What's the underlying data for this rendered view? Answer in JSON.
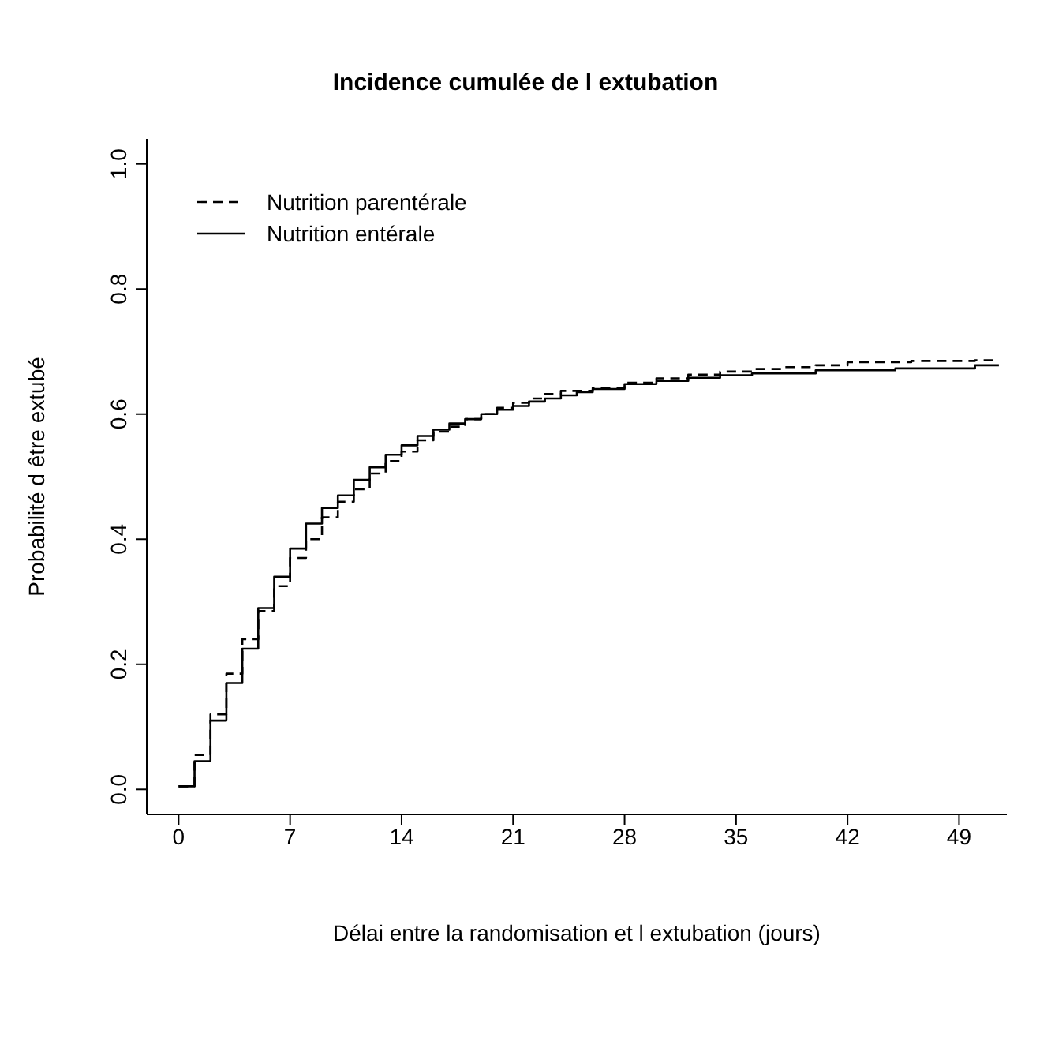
{
  "chart_data": {
    "type": "step",
    "title": "Incidence cumulée de l extubation",
    "xlabel": "Délai entre la randomisation et l extubation (jours)",
    "ylabel": "Probabilité d être extubé",
    "xlim": [
      -2,
      52
    ],
    "xticks": [
      0,
      7,
      14,
      21,
      28,
      35,
      42,
      49
    ],
    "ylim": [
      -0.04,
      1.04
    ],
    "yticks": [
      {
        "value": 0,
        "label": "0.0"
      },
      {
        "value": 0.2,
        "label": "0.2"
      },
      {
        "value": 0.4,
        "label": "0.4"
      },
      {
        "value": 0.6,
        "label": "0.6"
      },
      {
        "value": 0.8,
        "label": "0.8"
      },
      {
        "value": 1,
        "label": "1.0"
      }
    ],
    "legend": "top left",
    "marker": "none",
    "series": [
      {
        "name": "Nutrition parentérale",
        "color": "#000000",
        "line_style": "dashed",
        "x": [
          0,
          1,
          2,
          3,
          4,
          5,
          6,
          7,
          8,
          9,
          10,
          11,
          12,
          13,
          14,
          15,
          16,
          17,
          18,
          19,
          20,
          21,
          22,
          23,
          24,
          26,
          28,
          30,
          32,
          34,
          36,
          38,
          40,
          42,
          46,
          50,
          51.5
        ],
        "values": [
          0.005,
          0.055,
          0.12,
          0.185,
          0.24,
          0.285,
          0.325,
          0.37,
          0.4,
          0.435,
          0.46,
          0.48,
          0.505,
          0.525,
          0.54,
          0.558,
          0.572,
          0.58,
          0.592,
          0.6,
          0.61,
          0.618,
          0.625,
          0.632,
          0.637,
          0.642,
          0.65,
          0.657,
          0.663,
          0.668,
          0.672,
          0.675,
          0.678,
          0.683,
          0.685,
          0.686,
          0.686
        ]
      },
      {
        "name": "Nutrition entérale",
        "color": "#000000",
        "line_style": "solid",
        "x": [
          0,
          1,
          2,
          3,
          4,
          5,
          6,
          7,
          8,
          9,
          10,
          11,
          12,
          13,
          14,
          15,
          16,
          17,
          18,
          19,
          20,
          21,
          22,
          23,
          24,
          25,
          26,
          28,
          30,
          32,
          34,
          36,
          40,
          45,
          50,
          51.5
        ],
        "values": [
          0.005,
          0.045,
          0.11,
          0.17,
          0.225,
          0.29,
          0.34,
          0.385,
          0.425,
          0.45,
          0.47,
          0.495,
          0.515,
          0.535,
          0.55,
          0.565,
          0.575,
          0.585,
          0.592,
          0.6,
          0.607,
          0.613,
          0.62,
          0.625,
          0.63,
          0.635,
          0.64,
          0.648,
          0.653,
          0.658,
          0.662,
          0.665,
          0.67,
          0.673,
          0.678,
          0.678
        ]
      }
    ]
  }
}
